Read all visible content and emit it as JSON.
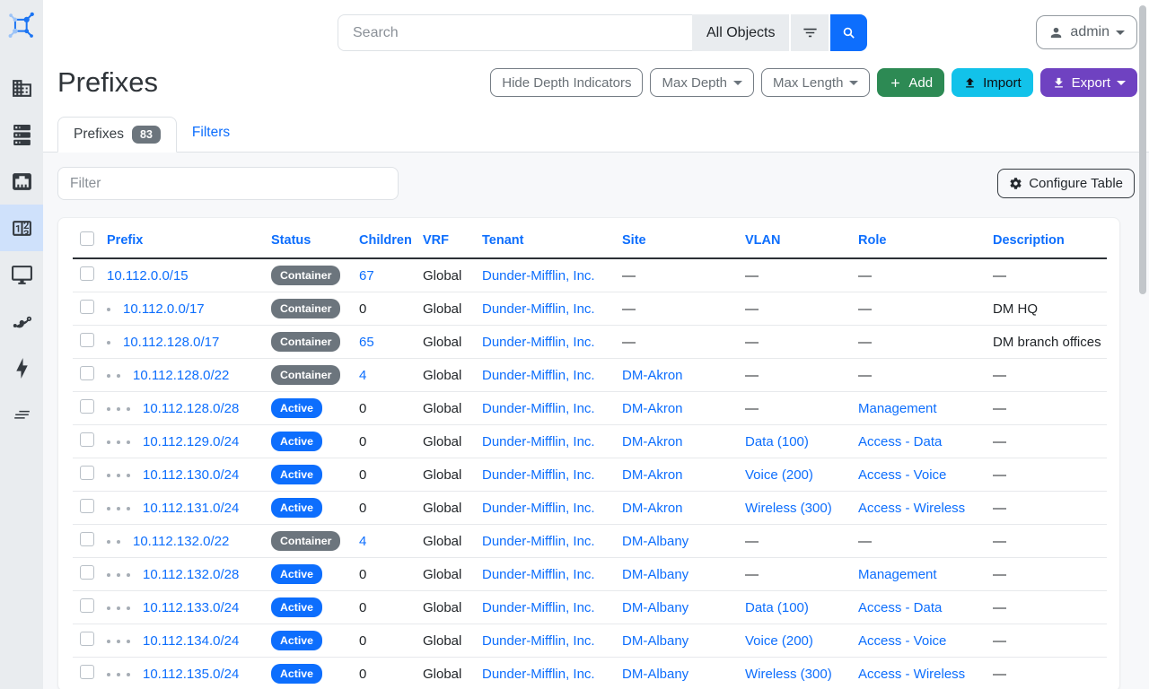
{
  "sidebar": {
    "icons": [
      "netbox-logo",
      "organization",
      "devices",
      "connections",
      "ipam",
      "virtualization",
      "circuits",
      "power",
      "other"
    ],
    "active": "ipam"
  },
  "topbar": {
    "search_placeholder": "Search",
    "scope_label": "All Objects",
    "user_label": "admin"
  },
  "page": {
    "title": "Prefixes"
  },
  "toolbar": {
    "hide_depth_label": "Hide Depth Indicators",
    "max_depth_label": "Max Depth",
    "max_length_label": "Max Length",
    "add_label": "Add",
    "import_label": "Import",
    "export_label": "Export"
  },
  "tabs": {
    "prefixes_label": "Prefixes",
    "prefixes_count": "83",
    "filters_label": "Filters"
  },
  "table_controls": {
    "filter_placeholder": "Filter",
    "configure_label": "Configure Table"
  },
  "colors": {
    "accent": "#0d6efd",
    "status_container": "#6c757d",
    "status_active": "#0d6efd",
    "add_green": "#2d8a54",
    "import_cyan": "#12c2ea",
    "export_purple": "#6f42c1"
  },
  "table": {
    "columns": [
      "Prefix",
      "Status",
      "Children",
      "VRF",
      "Tenant",
      "Site",
      "VLAN",
      "Role",
      "Description"
    ],
    "rows": [
      {
        "prefix": "10.112.0.0/15",
        "depth": 0,
        "status": "Container",
        "children": "67",
        "children_link": true,
        "vrf": "Global",
        "tenant": "Dunder-Mifflin, Inc.",
        "site": "—",
        "vlan": "—",
        "role": "—",
        "description": "—"
      },
      {
        "prefix": "10.112.0.0/17",
        "depth": 1,
        "status": "Container",
        "children": "0",
        "children_link": false,
        "vrf": "Global",
        "tenant": "Dunder-Mifflin, Inc.",
        "site": "—",
        "vlan": "—",
        "role": "—",
        "description": "DM HQ"
      },
      {
        "prefix": "10.112.128.0/17",
        "depth": 1,
        "status": "Container",
        "children": "65",
        "children_link": true,
        "vrf": "Global",
        "tenant": "Dunder-Mifflin, Inc.",
        "site": "—",
        "vlan": "—",
        "role": "—",
        "description": "DM branch offices"
      },
      {
        "prefix": "10.112.128.0/22",
        "depth": 2,
        "status": "Container",
        "children": "4",
        "children_link": true,
        "vrf": "Global",
        "tenant": "Dunder-Mifflin, Inc.",
        "site": "DM-Akron",
        "vlan": "—",
        "role": "—",
        "description": "—"
      },
      {
        "prefix": "10.112.128.0/28",
        "depth": 3,
        "status": "Active",
        "children": "0",
        "children_link": false,
        "vrf": "Global",
        "tenant": "Dunder-Mifflin, Inc.",
        "site": "DM-Akron",
        "vlan": "—",
        "role": "Management",
        "description": "—"
      },
      {
        "prefix": "10.112.129.0/24",
        "depth": 3,
        "status": "Active",
        "children": "0",
        "children_link": false,
        "vrf": "Global",
        "tenant": "Dunder-Mifflin, Inc.",
        "site": "DM-Akron",
        "vlan": "Data (100)",
        "role": "Access - Data",
        "description": "—"
      },
      {
        "prefix": "10.112.130.0/24",
        "depth": 3,
        "status": "Active",
        "children": "0",
        "children_link": false,
        "vrf": "Global",
        "tenant": "Dunder-Mifflin, Inc.",
        "site": "DM-Akron",
        "vlan": "Voice (200)",
        "role": "Access - Voice",
        "description": "—"
      },
      {
        "prefix": "10.112.131.0/24",
        "depth": 3,
        "status": "Active",
        "children": "0",
        "children_link": false,
        "vrf": "Global",
        "tenant": "Dunder-Mifflin, Inc.",
        "site": "DM-Akron",
        "vlan": "Wireless (300)",
        "role": "Access - Wireless",
        "description": "—"
      },
      {
        "prefix": "10.112.132.0/22",
        "depth": 2,
        "status": "Container",
        "children": "4",
        "children_link": true,
        "vrf": "Global",
        "tenant": "Dunder-Mifflin, Inc.",
        "site": "DM-Albany",
        "vlan": "—",
        "role": "—",
        "description": "—"
      },
      {
        "prefix": "10.112.132.0/28",
        "depth": 3,
        "status": "Active",
        "children": "0",
        "children_link": false,
        "vrf": "Global",
        "tenant": "Dunder-Mifflin, Inc.",
        "site": "DM-Albany",
        "vlan": "—",
        "role": "Management",
        "description": "—"
      },
      {
        "prefix": "10.112.133.0/24",
        "depth": 3,
        "status": "Active",
        "children": "0",
        "children_link": false,
        "vrf": "Global",
        "tenant": "Dunder-Mifflin, Inc.",
        "site": "DM-Albany",
        "vlan": "Data (100)",
        "role": "Access - Data",
        "description": "—"
      },
      {
        "prefix": "10.112.134.0/24",
        "depth": 3,
        "status": "Active",
        "children": "0",
        "children_link": false,
        "vrf": "Global",
        "tenant": "Dunder-Mifflin, Inc.",
        "site": "DM-Albany",
        "vlan": "Voice (200)",
        "role": "Access - Voice",
        "description": "—"
      },
      {
        "prefix": "10.112.135.0/24",
        "depth": 3,
        "status": "Active",
        "children": "0",
        "children_link": false,
        "vrf": "Global",
        "tenant": "Dunder-Mifflin, Inc.",
        "site": "DM-Albany",
        "vlan": "Wireless (300)",
        "role": "Access - Wireless",
        "description": "—"
      }
    ]
  }
}
